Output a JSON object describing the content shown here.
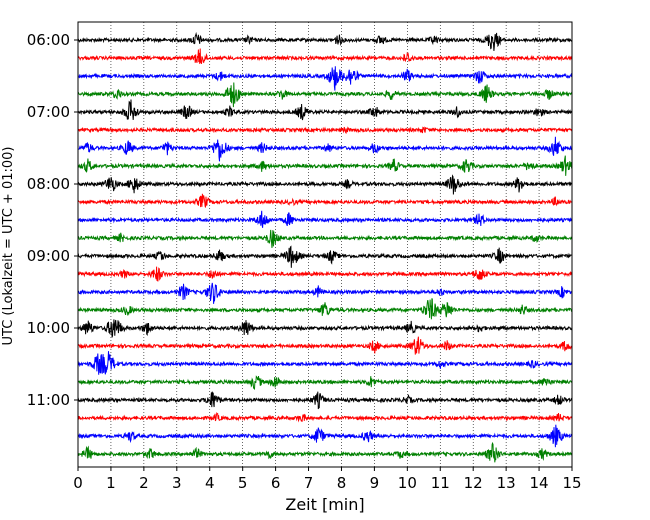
{
  "chart_data": {
    "type": "line",
    "xlabel": "Zeit  [min]",
    "ylabel": "UTC (Lokalzeit = UTC + 01:00)",
    "xlim": [
      0,
      15
    ],
    "x_ticks": [
      "0",
      "1",
      "2",
      "3",
      "4",
      "5",
      "6",
      "7",
      "8",
      "9",
      "10",
      "11",
      "12",
      "13",
      "14",
      "15"
    ],
    "y_ticks": [
      "06:00",
      "07:00",
      "08:00",
      "09:00",
      "10:00",
      "11:00"
    ],
    "grid": "vertical dotted",
    "trace_interval_minutes": 15,
    "colors_cycle": [
      "#000000",
      "#ff0000",
      "#0000ff",
      "#008000"
    ],
    "traces": [
      {
        "start": "06:00",
        "color": "#000000",
        "events": [
          [
            3.6,
            0.5
          ],
          [
            5.2,
            0.3
          ],
          [
            7.9,
            0.4
          ],
          [
            9.2,
            0.4
          ],
          [
            10.8,
            0.3
          ],
          [
            12.6,
            0.9
          ]
        ]
      },
      {
        "start": "06:15",
        "color": "#ff0000",
        "events": [
          [
            3.7,
            0.7
          ],
          [
            10.0,
            0.4
          ]
        ]
      },
      {
        "start": "06:30",
        "color": "#0000ff",
        "events": [
          [
            4.3,
            0.4
          ],
          [
            7.8,
            1.0
          ],
          [
            8.3,
            0.8
          ],
          [
            10.0,
            0.5
          ],
          [
            12.2,
            0.6
          ]
        ]
      },
      {
        "start": "06:45",
        "color": "#008000",
        "events": [
          [
            1.2,
            0.4
          ],
          [
            4.7,
            1.0
          ],
          [
            6.2,
            0.4
          ],
          [
            9.5,
            0.4
          ],
          [
            12.4,
            0.7
          ],
          [
            14.3,
            0.4
          ]
        ]
      },
      {
        "start": "07:00",
        "color": "#000000",
        "events": [
          [
            1.6,
            0.9
          ],
          [
            3.3,
            0.6
          ],
          [
            4.6,
            0.4
          ],
          [
            6.8,
            0.6
          ],
          [
            9.0,
            0.5
          ],
          [
            11.5,
            0.4
          ],
          [
            14.0,
            0.4
          ]
        ]
      },
      {
        "start": "07:15",
        "color": "#ff0000",
        "events": [
          [
            8.1,
            0.2
          ],
          [
            10.5,
            0.2
          ]
        ]
      },
      {
        "start": "07:30",
        "color": "#0000ff",
        "events": [
          [
            0.3,
            0.4
          ],
          [
            1.5,
            0.6
          ],
          [
            2.7,
            0.5
          ],
          [
            4.3,
            1.0
          ],
          [
            5.6,
            0.4
          ],
          [
            7.6,
            0.3
          ],
          [
            9.0,
            0.4
          ],
          [
            14.5,
            0.8
          ]
        ]
      },
      {
        "start": "07:45",
        "color": "#008000",
        "events": [
          [
            0.3,
            0.5
          ],
          [
            5.6,
            0.4
          ],
          [
            9.6,
            0.5
          ],
          [
            11.8,
            0.6
          ],
          [
            13.7,
            0.4
          ],
          [
            14.8,
            0.7
          ]
        ]
      },
      {
        "start": "08:00",
        "color": "#000000",
        "events": [
          [
            1.0,
            0.7
          ],
          [
            1.7,
            0.7
          ],
          [
            8.2,
            0.3
          ],
          [
            11.4,
            0.8
          ],
          [
            13.4,
            0.6
          ]
        ]
      },
      {
        "start": "08:15",
        "color": "#ff0000",
        "events": [
          [
            3.8,
            0.6
          ],
          [
            6.5,
            0.2
          ],
          [
            14.5,
            0.3
          ]
        ]
      },
      {
        "start": "08:30",
        "color": "#0000ff",
        "events": [
          [
            5.6,
            0.7
          ],
          [
            6.4,
            0.5
          ],
          [
            12.2,
            0.5
          ]
        ]
      },
      {
        "start": "08:45",
        "color": "#008000",
        "events": [
          [
            1.3,
            0.3
          ],
          [
            5.9,
            0.7
          ],
          [
            13.9,
            0.3
          ]
        ]
      },
      {
        "start": "09:00",
        "color": "#000000",
        "events": [
          [
            2.5,
            0.4
          ],
          [
            4.3,
            0.5
          ],
          [
            6.5,
            0.9
          ],
          [
            7.7,
            0.5
          ],
          [
            12.8,
            0.6
          ]
        ]
      },
      {
        "start": "09:15",
        "color": "#ff0000",
        "events": [
          [
            1.4,
            0.3
          ],
          [
            2.4,
            0.6
          ],
          [
            4.1,
            0.4
          ],
          [
            12.2,
            0.6
          ]
        ]
      },
      {
        "start": "09:30",
        "color": "#0000ff",
        "events": [
          [
            3.2,
            0.6
          ],
          [
            4.1,
            0.9
          ],
          [
            7.3,
            0.4
          ],
          [
            11.0,
            0.3
          ],
          [
            14.7,
            0.4
          ]
        ]
      },
      {
        "start": "09:45",
        "color": "#008000",
        "events": [
          [
            1.5,
            0.4
          ],
          [
            7.5,
            0.6
          ],
          [
            10.7,
            1.0
          ],
          [
            11.2,
            0.7
          ],
          [
            13.5,
            0.4
          ]
        ]
      },
      {
        "start": "10:00",
        "color": "#000000",
        "events": [
          [
            0.3,
            0.6
          ],
          [
            1.1,
            1.0
          ],
          [
            2.1,
            0.5
          ],
          [
            5.1,
            0.7
          ],
          [
            10.1,
            0.5
          ],
          [
            12.2,
            0.3
          ]
        ]
      },
      {
        "start": "10:15",
        "color": "#ff0000",
        "events": [
          [
            9.0,
            0.5
          ],
          [
            10.3,
            0.8
          ],
          [
            11.2,
            0.4
          ],
          [
            14.8,
            0.4
          ]
        ]
      },
      {
        "start": "10:30",
        "color": "#0000ff",
        "events": [
          [
            0.6,
            0.7
          ],
          [
            0.9,
            1.0
          ],
          [
            11.0,
            0.3
          ],
          [
            13.8,
            0.3
          ]
        ]
      },
      {
        "start": "10:45",
        "color": "#008000",
        "events": [
          [
            5.4,
            0.6
          ],
          [
            6.0,
            0.5
          ],
          [
            8.9,
            0.4
          ],
          [
            14.2,
            0.4
          ]
        ]
      },
      {
        "start": "11:00",
        "color": "#000000",
        "events": [
          [
            4.1,
            0.7
          ],
          [
            7.3,
            0.6
          ],
          [
            10.0,
            0.3
          ],
          [
            14.6,
            0.4
          ]
        ]
      },
      {
        "start": "11:15",
        "color": "#ff0000",
        "events": [
          [
            4.2,
            0.3
          ],
          [
            6.8,
            0.3
          ],
          [
            14.6,
            0.3
          ]
        ]
      },
      {
        "start": "11:30",
        "color": "#0000ff",
        "events": [
          [
            1.6,
            0.4
          ],
          [
            7.3,
            0.7
          ],
          [
            8.8,
            0.5
          ],
          [
            14.5,
            0.8
          ]
        ]
      },
      {
        "start": "11:45",
        "color": "#008000",
        "events": [
          [
            0.3,
            0.5
          ],
          [
            2.2,
            0.4
          ],
          [
            3.6,
            0.4
          ],
          [
            5.8,
            0.3
          ],
          [
            9.8,
            0.3
          ],
          [
            12.6,
            0.8
          ],
          [
            14.1,
            0.4
          ]
        ]
      }
    ]
  }
}
